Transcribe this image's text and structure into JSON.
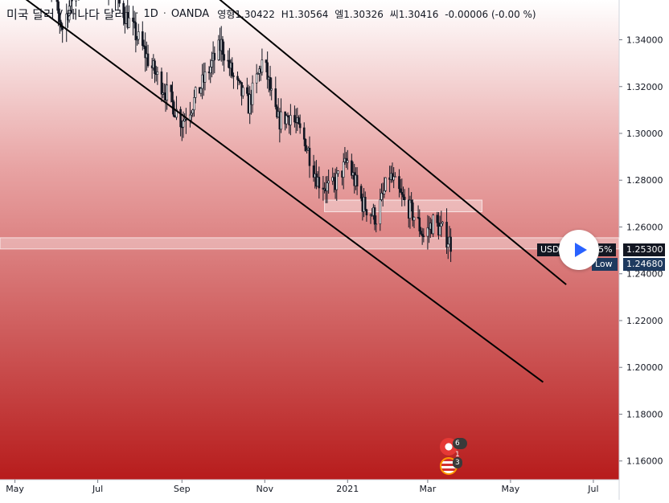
{
  "header": {
    "symbol": "미국 달러 / 캐나다 달러",
    "interval": "1D",
    "exchange": "OANDA",
    "open": "영형1.30422",
    "high": "H1.30564",
    "low": "엘1.30326",
    "close": "씨1.30416",
    "change": "-0.00006 (-0.00 %)",
    "separator": "·"
  },
  "price_axis": {
    "last_price": "1.25300",
    "symbol_tag": "USDCAD",
    "symbol_change": "-0.35%",
    "low_label": "Low",
    "low_price": "1.24680"
  },
  "badges": {
    "events_top_count": "6 1",
    "events_bottom_count": "3"
  },
  "colors": {
    "background_top": "#ffffff",
    "background_bottom": "#b71c1c",
    "candle": "#131722",
    "trendline": "#000000",
    "highlight_band": "#ffffff",
    "play_accent": "#2962ff",
    "low_tag": "#1e3a5f"
  },
  "chart_data": {
    "type": "candlestick",
    "symbol": "USDCAD",
    "interval": "1D",
    "y_axis": {
      "position": "right",
      "ticks": [
        1.16,
        1.18,
        1.2,
        1.22,
        1.24,
        1.26,
        1.28,
        1.3,
        1.32,
        1.34
      ],
      "tick_labels": [
        "1.16000",
        "1.18000",
        "1.20000",
        "1.22000",
        "1.24000",
        "1.26000",
        "1.28000",
        "1.30000",
        "1.32000",
        "1.34000"
      ],
      "range": [
        1.152,
        1.357
      ]
    },
    "x_axis": {
      "tick_dates": [
        "2020-05-01",
        "2020-07-01",
        "2020-09-01",
        "2020-11-01",
        "2021-01-01",
        "2021-03-01",
        "2021-05-01",
        "2021-07-01"
      ],
      "tick_labels": [
        "May",
        "Jul",
        "Sep",
        "Nov",
        "2021",
        "Mar",
        "May",
        "Jul"
      ],
      "range": [
        "2020-04-20",
        "2021-07-20"
      ]
    },
    "price_path": [
      {
        "date": "2020-05-20",
        "close": 1.375
      },
      {
        "date": "2020-06-05",
        "close": 1.345
      },
      {
        "date": "2020-06-12",
        "close": 1.358
      },
      {
        "date": "2020-06-25",
        "close": 1.372
      },
      {
        "date": "2020-07-10",
        "close": 1.362
      },
      {
        "date": "2020-07-20",
        "close": 1.352
      },
      {
        "date": "2020-07-31",
        "close": 1.34
      },
      {
        "date": "2020-08-10",
        "close": 1.328
      },
      {
        "date": "2020-08-20",
        "close": 1.318
      },
      {
        "date": "2020-09-01",
        "close": 1.305
      },
      {
        "date": "2020-09-10",
        "close": 1.314
      },
      {
        "date": "2020-09-20",
        "close": 1.326
      },
      {
        "date": "2020-09-30",
        "close": 1.338
      },
      {
        "date": "2020-10-10",
        "close": 1.322
      },
      {
        "date": "2020-10-20",
        "close": 1.312
      },
      {
        "date": "2020-10-31",
        "close": 1.332
      },
      {
        "date": "2020-11-10",
        "close": 1.305
      },
      {
        "date": "2020-11-20",
        "close": 1.308
      },
      {
        "date": "2020-12-01",
        "close": 1.296
      },
      {
        "date": "2020-12-10",
        "close": 1.28
      },
      {
        "date": "2020-12-20",
        "close": 1.276
      },
      {
        "date": "2021-01-01",
        "close": 1.288
      },
      {
        "date": "2021-01-12",
        "close": 1.27
      },
      {
        "date": "2021-01-22",
        "close": 1.264
      },
      {
        "date": "2021-02-01",
        "close": 1.282
      },
      {
        "date": "2021-02-10",
        "close": 1.272
      },
      {
        "date": "2021-02-20",
        "close": 1.264
      },
      {
        "date": "2021-02-26",
        "close": 1.256
      },
      {
        "date": "2021-03-05",
        "close": 1.262
      },
      {
        "date": "2021-03-12",
        "close": 1.258
      },
      {
        "date": "2021-03-18",
        "close": 1.253
      }
    ],
    "lines": [
      {
        "name": "upper channel",
        "from": {
          "date": "2020-08-20",
          "value": 1.3762
        },
        "to": {
          "date": "2021-06-11",
          "value": 1.2354
        }
      },
      {
        "name": "lower channel",
        "from": {
          "date": "2020-04-27",
          "value": 1.3625
        },
        "to": {
          "date": "2021-05-25",
          "value": 1.1937
        }
      }
    ],
    "zones": [
      {
        "name": "resistance box",
        "from_date": "2020-12-15",
        "to_date": "2021-04-10",
        "low": 1.2665,
        "high": 1.2715
      },
      {
        "name": "current price band",
        "from_date": "2020-04-20",
        "to_date": "2021-07-20",
        "low": 1.2506,
        "high": 1.2554
      }
    ],
    "last_price": 1.253,
    "low_value": 1.2468
  }
}
